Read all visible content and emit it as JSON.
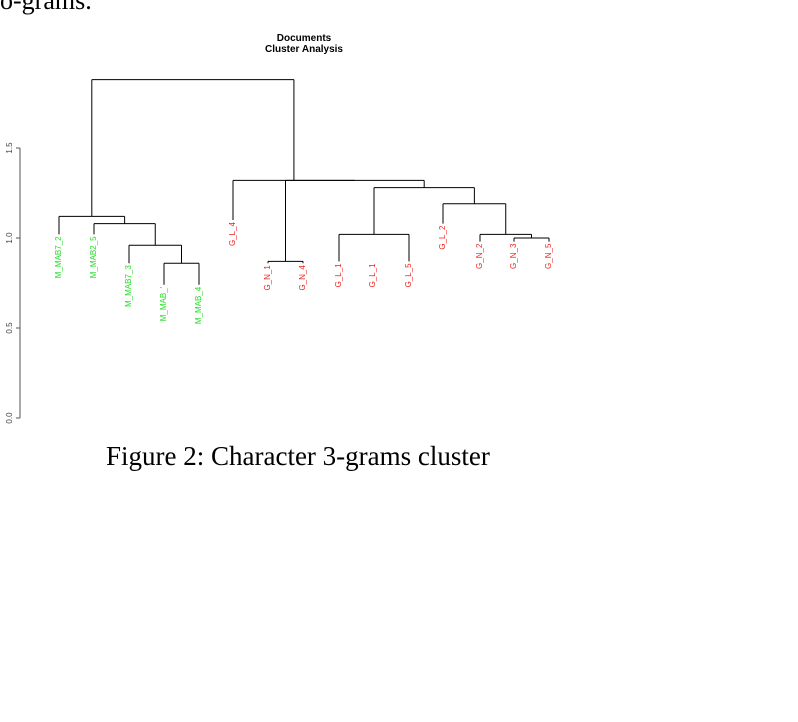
{
  "page": {
    "top_fragment": "o-grams.",
    "caption": "Figure 2: Character 3-grams cluster"
  },
  "chart_data": {
    "type": "dendrogram",
    "title": "Documents",
    "subtitle": "Cluster Analysis",
    "xlabel": "",
    "ylabel": "",
    "ylim": [
      0,
      1.9
    ],
    "yticks": [
      "0.0",
      "0.5",
      "1.0",
      "1.5"
    ],
    "ytick_values": [
      0.0,
      0.5,
      1.0,
      1.5
    ],
    "colors": {
      "green": "#22dd22",
      "red": "#ee2222",
      "branch": "#000000"
    },
    "leaves": [
      {
        "label": "M_MAB7_2",
        "group": "green",
        "tip": 1.02
      },
      {
        "label": "M_MAB2_5",
        "group": "green",
        "tip": 1.02
      },
      {
        "label": "M_MAB7_3",
        "group": "green",
        "tip": 0.86
      },
      {
        "label": "M_MAB_'",
        "group": "green",
        "tip": 0.74
      },
      {
        "label": "M_MAB_4",
        "group": "green",
        "tip": 0.74
      },
      {
        "label": "G_L_4",
        "group": "red",
        "tip": 1.1
      },
      {
        "label": "G_N_1",
        "group": "red",
        "tip": 0.86
      },
      {
        "label": "G_N_4",
        "group": "red",
        "tip": 0.86
      },
      {
        "label": "G_L_1",
        "group": "red",
        "tip": 0.87
      },
      {
        "label": "G_L_1",
        "group": "red",
        "tip": 0.87
      },
      {
        "label": "G_L_5",
        "group": "red",
        "tip": 0.87
      },
      {
        "label": "G_L_2",
        "group": "red",
        "tip": 1.08
      },
      {
        "label": "G_N_2",
        "group": "red",
        "tip": 0.98
      },
      {
        "label": "G_N_3",
        "group": "red",
        "tip": 0.98
      },
      {
        "label": "G_N_5",
        "group": "red",
        "tip": 0.98
      }
    ],
    "merges": [
      {
        "id": "m1",
        "children": [
          "L3",
          "L4"
        ],
        "height": 0.86
      },
      {
        "id": "m2",
        "children": [
          "L2",
          "m1"
        ],
        "height": 0.96
      },
      {
        "id": "m3",
        "children": [
          "L1",
          "m2"
        ],
        "height": 1.08
      },
      {
        "id": "m4",
        "children": [
          "L0",
          "m3"
        ],
        "height": 1.12
      },
      {
        "id": "m5",
        "children": [
          "L6",
          "L7"
        ],
        "height": 0.87
      },
      {
        "id": "m6",
        "children": [
          "L8",
          "L10"
        ],
        "height": 1.02
      },
      {
        "id": "m7",
        "children": [
          "L13",
          "L14"
        ],
        "height": 1.0
      },
      {
        "id": "m8",
        "children": [
          "L12",
          "m7"
        ],
        "height": 1.02
      },
      {
        "id": "m9",
        "children": [
          "L11",
          "m8"
        ],
        "height": 1.19
      },
      {
        "id": "m10",
        "children": [
          "m6",
          "m9"
        ],
        "height": 1.28
      },
      {
        "id": "m11",
        "children": [
          "m5",
          "m10"
        ],
        "height": 1.32
      },
      {
        "id": "m12",
        "children": [
          "L5",
          "m11"
        ],
        "height": 1.32
      },
      {
        "id": "m13",
        "children": [
          "m4",
          "m12"
        ],
        "height": 1.88
      }
    ]
  }
}
